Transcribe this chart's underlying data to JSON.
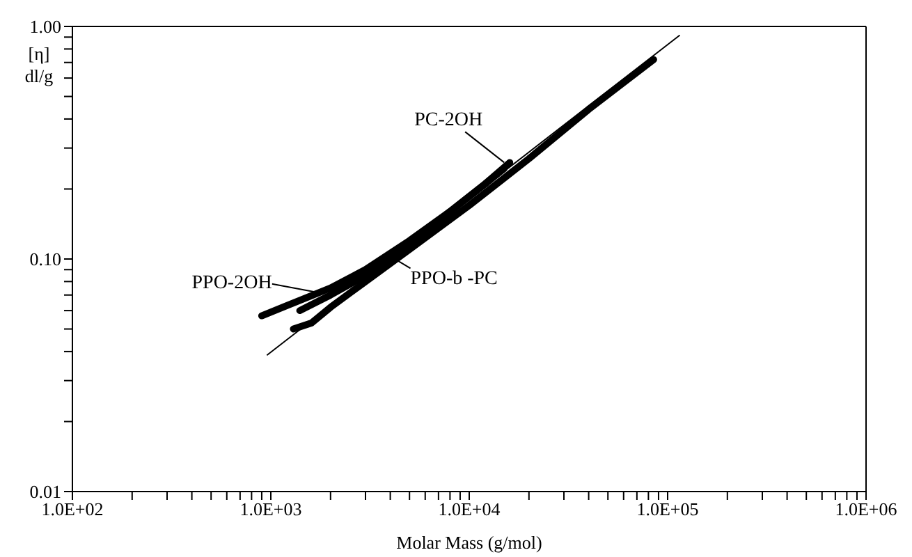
{
  "chart_data": {
    "type": "line",
    "xlabel": "Molar Mass (g/mol)",
    "ylabel": "[η] dl/g",
    "log": "xy",
    "marker": "none",
    "line_style": "solid",
    "xlim": [
      100,
      1000000
    ],
    "ylim": [
      0.01,
      1
    ],
    "xticks": [
      {
        "value": 100,
        "label": "1.0E+02"
      },
      {
        "value": 200,
        "label": null
      },
      {
        "value": 300,
        "label": null
      },
      {
        "value": 400,
        "label": null
      },
      {
        "value": 500,
        "label": null
      },
      {
        "value": 600,
        "label": null
      },
      {
        "value": 700,
        "label": null
      },
      {
        "value": 800,
        "label": null
      },
      {
        "value": 900,
        "label": null
      },
      {
        "value": 1000,
        "label": "1.0E+03"
      },
      {
        "value": 2000,
        "label": null
      },
      {
        "value": 3000,
        "label": null
      },
      {
        "value": 4000,
        "label": null
      },
      {
        "value": 5000,
        "label": null
      },
      {
        "value": 6000,
        "label": null
      },
      {
        "value": 7000,
        "label": null
      },
      {
        "value": 8000,
        "label": null
      },
      {
        "value": 9000,
        "label": null
      },
      {
        "value": 10000,
        "label": "1.0E+04"
      },
      {
        "value": 20000,
        "label": null
      },
      {
        "value": 30000,
        "label": null
      },
      {
        "value": 40000,
        "label": null
      },
      {
        "value": 50000,
        "label": null
      },
      {
        "value": 60000,
        "label": null
      },
      {
        "value": 70000,
        "label": null
      },
      {
        "value": 80000,
        "label": null
      },
      {
        "value": 90000,
        "label": null
      },
      {
        "value": 100000,
        "label": "1.0E+05"
      },
      {
        "value": 200000,
        "label": null
      },
      {
        "value": 300000,
        "label": null
      },
      {
        "value": 400000,
        "label": null
      },
      {
        "value": 500000,
        "label": null
      },
      {
        "value": 600000,
        "label": null
      },
      {
        "value": 700000,
        "label": null
      },
      {
        "value": 800000,
        "label": null
      },
      {
        "value": 900000,
        "label": null
      },
      {
        "value": 1000000,
        "label": "1.0E+06"
      }
    ],
    "yticks": [
      {
        "value": 0.01,
        "label": "0.01"
      },
      {
        "value": 0.02,
        "label": null
      },
      {
        "value": 0.03,
        "label": null
      },
      {
        "value": 0.04,
        "label": null
      },
      {
        "value": 0.05,
        "label": null
      },
      {
        "value": 0.06,
        "label": null
      },
      {
        "value": 0.07,
        "label": null
      },
      {
        "value": 0.08,
        "label": null
      },
      {
        "value": 0.09,
        "label": null
      },
      {
        "value": 0.1,
        "label": "0.10"
      },
      {
        "value": 0.2,
        "label": null
      },
      {
        "value": 0.3,
        "label": null
      },
      {
        "value": 0.4,
        "label": null
      },
      {
        "value": 0.5,
        "label": null
      },
      {
        "value": 0.6,
        "label": null
      },
      {
        "value": 0.7,
        "label": null
      },
      {
        "value": 0.8,
        "label": null
      },
      {
        "value": 0.9,
        "label": null
      },
      {
        "value": 1,
        "label": "1.00"
      }
    ],
    "series": [
      {
        "color": "#000000",
        "x": [
          900,
          1200,
          2000,
          3000,
          5000,
          8000,
          12000,
          16000
        ],
        "values": [
          0.057,
          0.063,
          0.075,
          0.09,
          0.12,
          0.16,
          0.21,
          0.26
        ]
      },
      {
        "color": "#000000",
        "x": [
          1400,
          2000,
          3000,
          5000,
          8000,
          12000,
          15000
        ],
        "values": [
          0.06,
          0.07,
          0.085,
          0.115,
          0.16,
          0.21,
          0.245
        ]
      },
      {
        "color": "#000000",
        "x": [
          1300,
          1600,
          2000,
          3000,
          5000,
          10000,
          20000,
          40000,
          85000
        ],
        "values": [
          0.05,
          0.053,
          0.062,
          0.08,
          0.11,
          0.17,
          0.27,
          0.44,
          0.72
        ]
      },
      {
        "color": "#000000",
        "type": "line",
        "x": [
          960,
          114600
        ],
        "values": [
          0.0387,
          0.914
        ]
      }
    ],
    "annotations": [
      {
        "text": "PC-2OH",
        "x": 15000,
        "y": 0.26
      },
      {
        "text": "PPO-2OH",
        "x": 1700,
        "y": 0.072
      },
      {
        "text": "PPO-b -PC",
        "x": 4300,
        "y": 0.099
      }
    ]
  }
}
